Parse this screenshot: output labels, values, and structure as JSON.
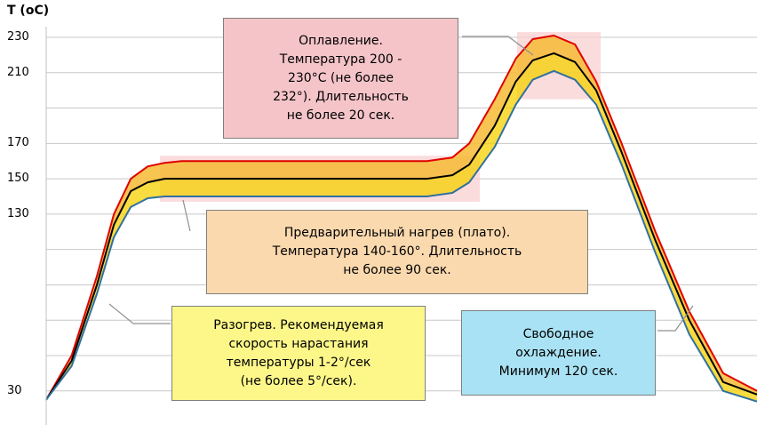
{
  "chart_data": {
    "type": "line",
    "ylabel": "T (oC)",
    "xlabel": "",
    "title": "",
    "ylim": [
      20,
      240
    ],
    "yticks": [
      230,
      210,
      170,
      150,
      130,
      30
    ],
    "grid": true,
    "colors": {
      "upper": "#e00000",
      "middle": "#000000",
      "lower": "#3070a0",
      "band_yellow": "#f5d000",
      "band_orange": "#f7b060",
      "zone_highlight": "#f9d0d2"
    },
    "series": [
      {
        "x": [
          0,
          30,
          60,
          80,
          100,
          120,
          140,
          160,
          200,
          250,
          300,
          350,
          400,
          450,
          480,
          500,
          530,
          555,
          575,
          600,
          625,
          650,
          680,
          720,
          760,
          800,
          840
        ],
        "values": [
          25,
          50,
          95,
          130,
          150,
          157,
          159,
          160,
          160,
          160,
          160,
          160,
          160,
          160,
          162,
          170,
          195,
          218,
          229,
          231,
          226,
          205,
          170,
          120,
          75,
          40,
          30
        ]
      },
      {
        "x": [
          0,
          30,
          60,
          80,
          100,
          120,
          140,
          160,
          200,
          250,
          300,
          350,
          400,
          450,
          480,
          500,
          530,
          555,
          575,
          600,
          625,
          650,
          680,
          720,
          760,
          800,
          840
        ],
        "values": [
          25,
          47,
          90,
          124,
          143,
          148,
          150,
          150,
          150,
          150,
          150,
          150,
          150,
          150,
          152,
          158,
          180,
          205,
          217,
          221,
          216,
          200,
          165,
          115,
          70,
          35,
          28
        ]
      },
      {
        "x": [
          0,
          30,
          60,
          80,
          100,
          120,
          140,
          160,
          200,
          250,
          300,
          350,
          400,
          450,
          480,
          500,
          530,
          555,
          575,
          600,
          625,
          650,
          680,
          720,
          760,
          800,
          840
        ],
        "values": [
          25,
          44,
          85,
          117,
          134,
          139,
          140,
          140,
          140,
          140,
          140,
          140,
          140,
          140,
          142,
          148,
          168,
          192,
          206,
          211,
          206,
          192,
          158,
          108,
          62,
          30,
          24
        ]
      }
    ],
    "annotations": [
      {
        "id": "reflow",
        "text": "Оплавление.\nТемпература 200 -\n230°С (не более\n232°). Длительность\nне более 20 сек."
      },
      {
        "id": "preheat",
        "text": "Предварительный нагрев (плато).\nТемпература 140-160°. Длительность\nне более 90 сек."
      },
      {
        "id": "ramp",
        "text": "Разогрев. Рекомендуемая\nскорость нарастания\nтемпературы  1-2°/сек\n(не более 5°/сек)."
      },
      {
        "id": "cool",
        "text": "Свободное\nохлаждение.\nМинимум 120 сек."
      }
    ]
  }
}
